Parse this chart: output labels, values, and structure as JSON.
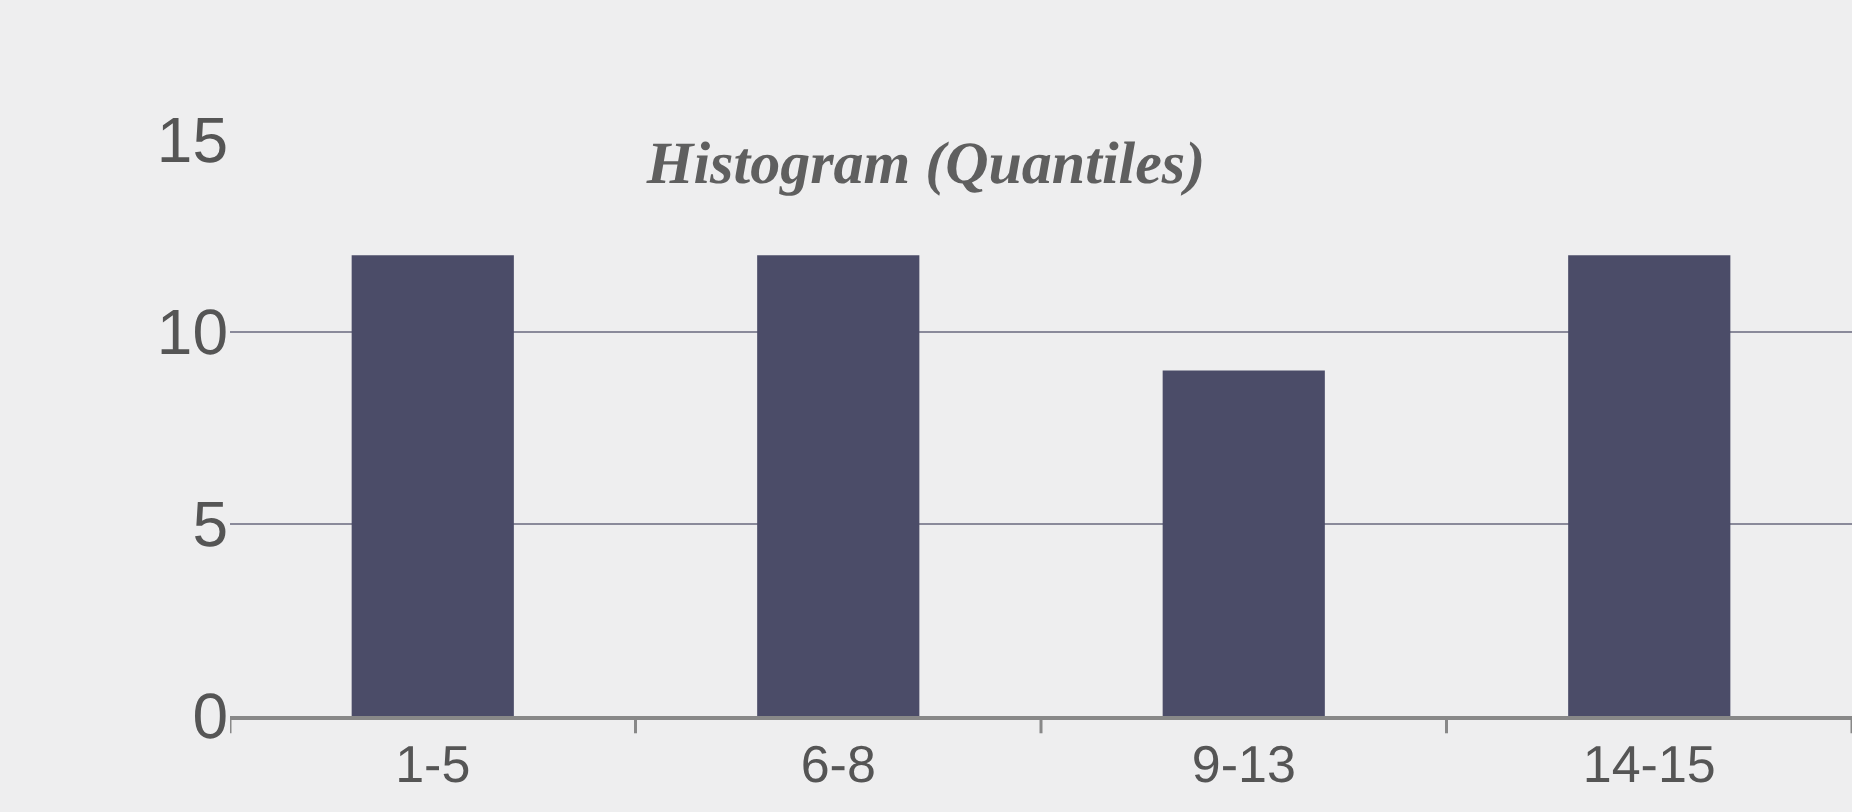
{
  "chart_data": {
    "type": "bar",
    "title": "Histogram (Quantiles)",
    "categories": [
      "1-5",
      "6-8",
      "9-13",
      "14-15"
    ],
    "values": [
      12,
      12,
      9,
      12
    ],
    "color": "#4b4c68",
    "ylim": [
      0,
      15
    ],
    "yticks": [
      0,
      5,
      10,
      15
    ],
    "grid": "y",
    "legend": false
  }
}
